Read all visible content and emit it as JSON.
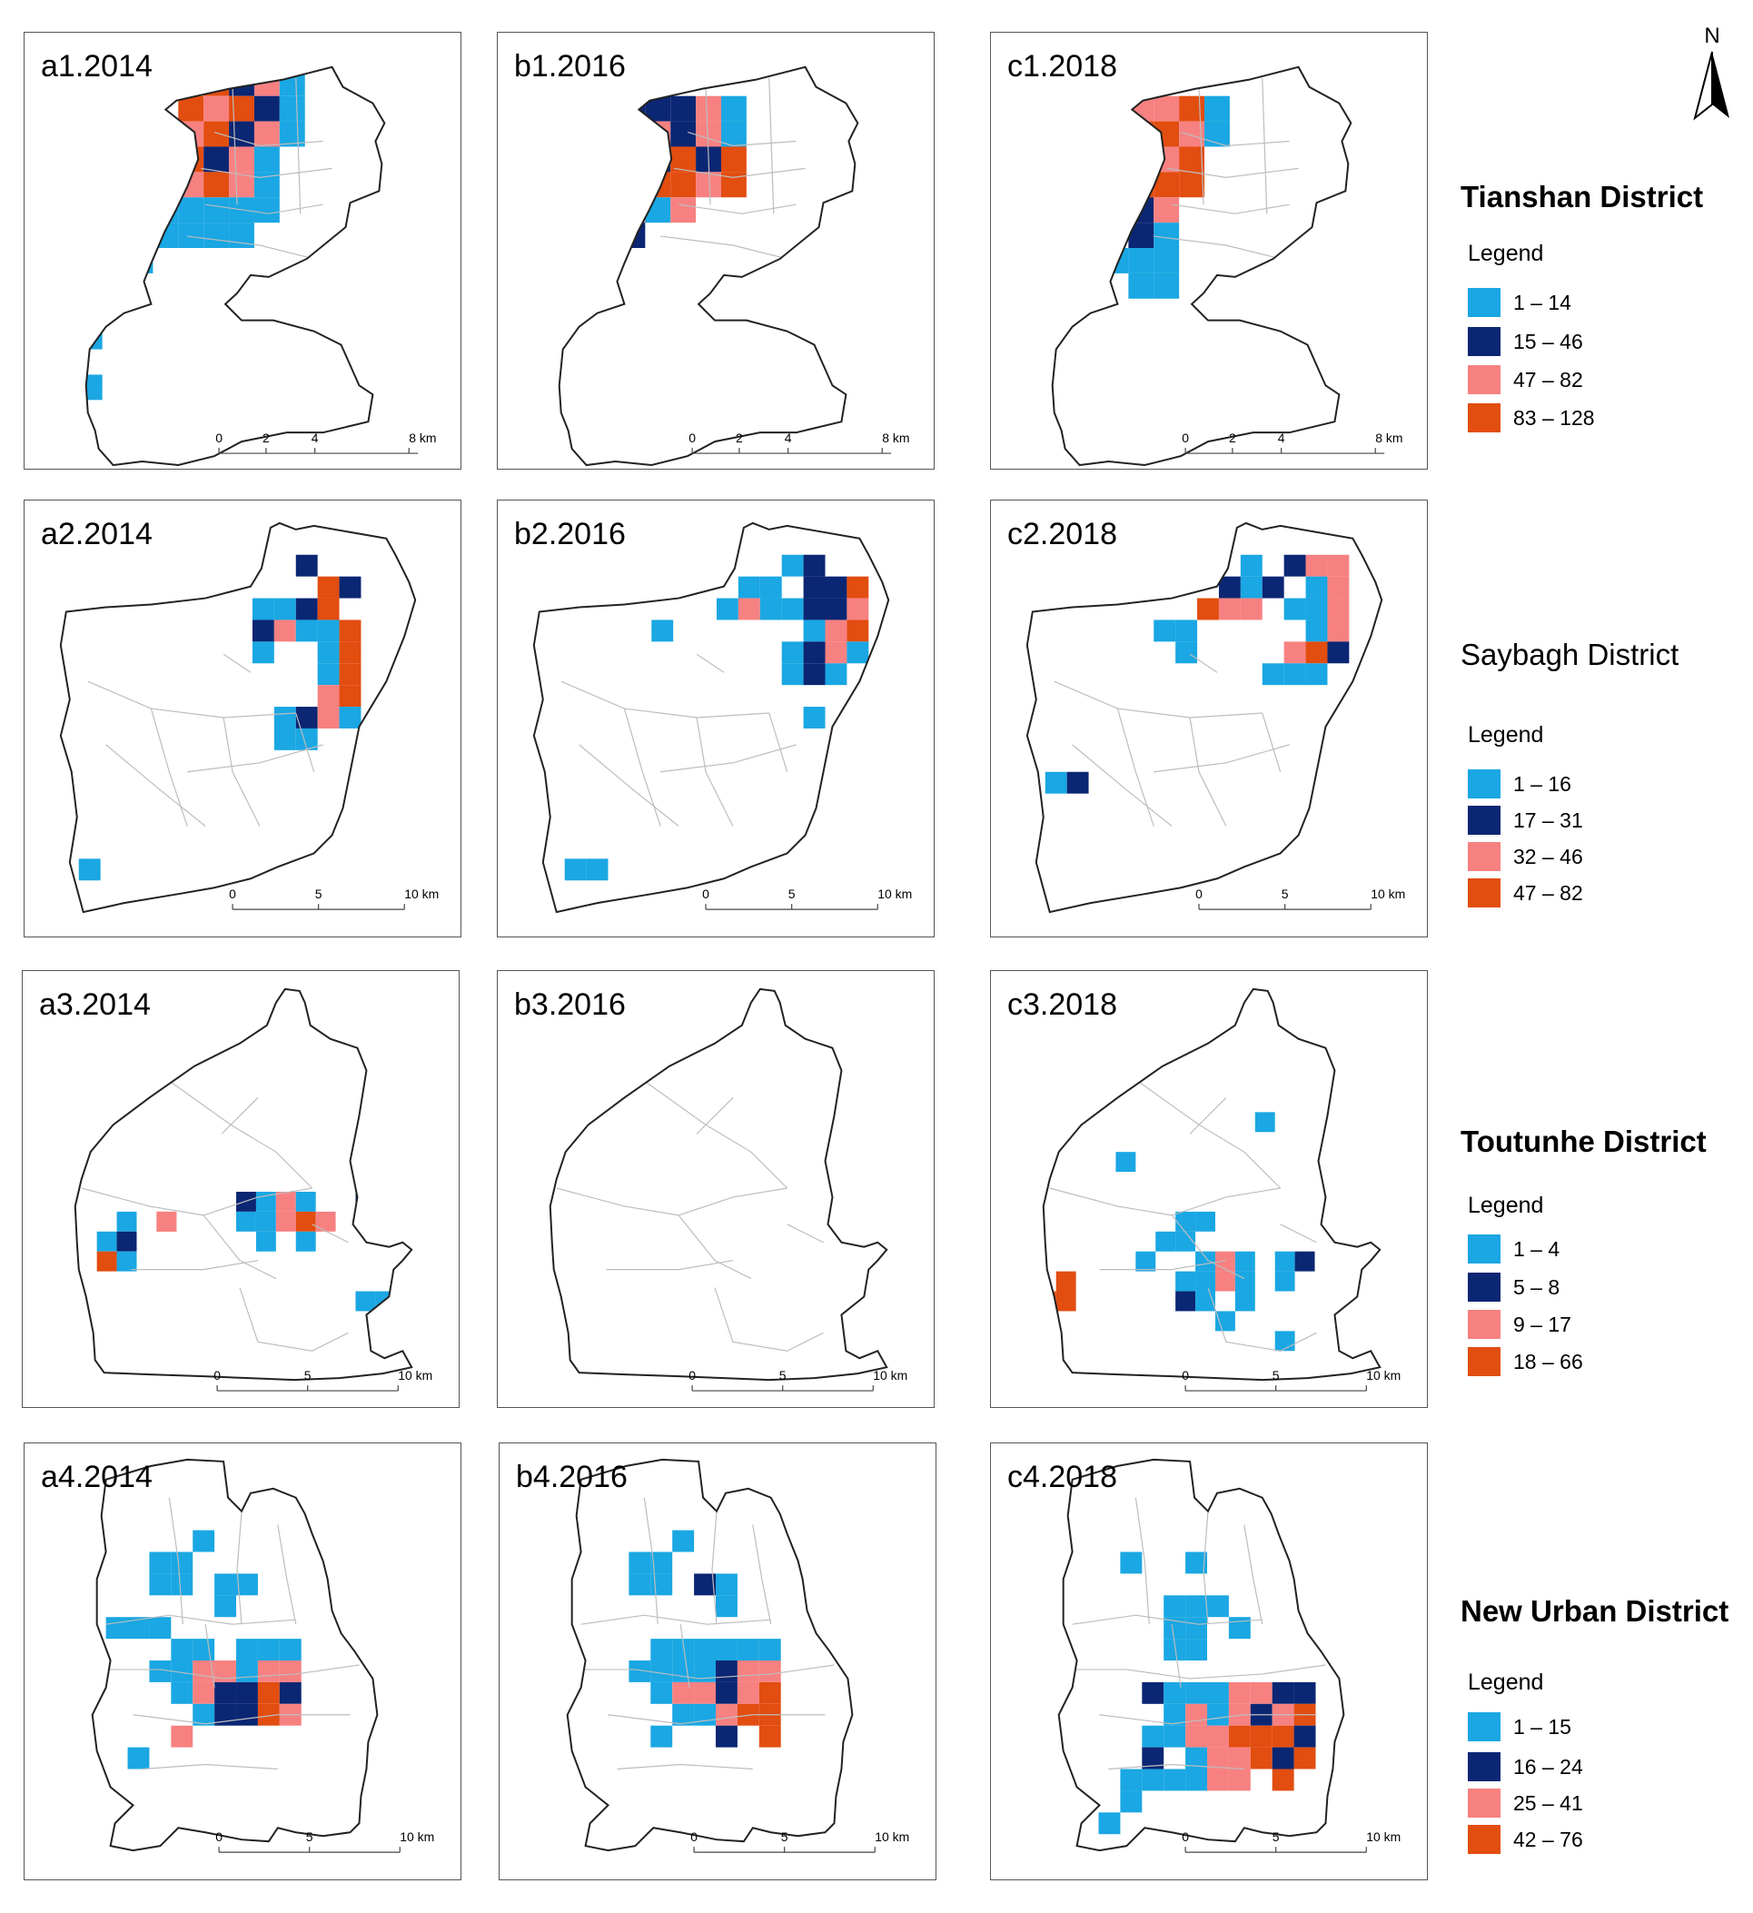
{
  "colors": {
    "c1": "#1aa7e3",
    "c2": "#0b2673",
    "c3": "#f78181",
    "c4": "#e24d10"
  },
  "north_label": "N",
  "scale_units": "km",
  "panels": [
    {
      "id": "a1",
      "title": "a1.2014",
      "district": "tianshan",
      "scale": [
        "0",
        "2",
        "4",
        "8 km"
      ]
    },
    {
      "id": "b1",
      "title": "b1.2016",
      "district": "tianshan",
      "scale": [
        "0",
        "2",
        "4",
        "8 km"
      ]
    },
    {
      "id": "c1",
      "title": "c1.2018",
      "district": "tianshan",
      "scale": [
        "0",
        "2",
        "4",
        "8 km"
      ]
    },
    {
      "id": "a2",
      "title": "a2.2014",
      "district": "saybagh",
      "scale": [
        "0",
        "5",
        "10 km"
      ]
    },
    {
      "id": "b2",
      "title": "b2.2016",
      "district": "saybagh",
      "scale": [
        "0",
        "5",
        "10 km"
      ]
    },
    {
      "id": "c2",
      "title": "c2.2018",
      "district": "saybagh",
      "scale": [
        "0",
        "5",
        "10 km"
      ]
    },
    {
      "id": "a3",
      "title": "a3.2014",
      "district": "toutunhe",
      "scale": [
        "0",
        "5",
        "10 km"
      ]
    },
    {
      "id": "b3",
      "title": "b3.2016",
      "district": "toutunhe",
      "scale": [
        "0",
        "5",
        "10 km"
      ]
    },
    {
      "id": "c3",
      "title": "c3.2018",
      "district": "toutunhe",
      "scale": [
        "0",
        "5",
        "10 km"
      ]
    },
    {
      "id": "a4",
      "title": "a4.2014",
      "district": "newurban",
      "scale": [
        "0",
        "5",
        "10 km"
      ]
    },
    {
      "id": "b4",
      "title": "b4.2016",
      "district": "newurban",
      "scale": [
        "0",
        "5",
        "10 km"
      ]
    },
    {
      "id": "c4",
      "title": "c4.2018",
      "district": "newurban",
      "scale": [
        "0",
        "5",
        "10 km"
      ]
    }
  ],
  "districts": [
    {
      "id": "tianshan",
      "name": "Tianshan District",
      "legend_title": "Legend",
      "classes": [
        "1 – 14",
        "15 – 46",
        "47 – 82",
        "83 – 128"
      ]
    },
    {
      "id": "saybagh",
      "name": "Saybagh District",
      "legend_title": "Legend",
      "classes": [
        "1 – 16",
        "17 – 31",
        "32 – 46",
        "47 – 82"
      ]
    },
    {
      "id": "toutunhe",
      "name": "Toutunhe District",
      "legend_title": "Legend",
      "classes": [
        "1 – 4",
        "5 – 8",
        "9 – 17",
        "18 – 66"
      ]
    },
    {
      "id": "newurban",
      "name": "New Urban District",
      "legend_title": "Legend",
      "classes": [
        "1 – 15",
        "16 – 24",
        "25 – 41",
        "42 – 76"
      ]
    }
  ],
  "grids": {
    "a1": [
      "0000...",
      "0000...",
      "0000...",
      "0000...",
      "0000...",
      "13..14411",
      "34..14211",
      "32..43221",
      "32..333221",
      "1322333311",
      ".1111111",
      ".111111",
      "1.1",
      "1"
    ]
  }
}
